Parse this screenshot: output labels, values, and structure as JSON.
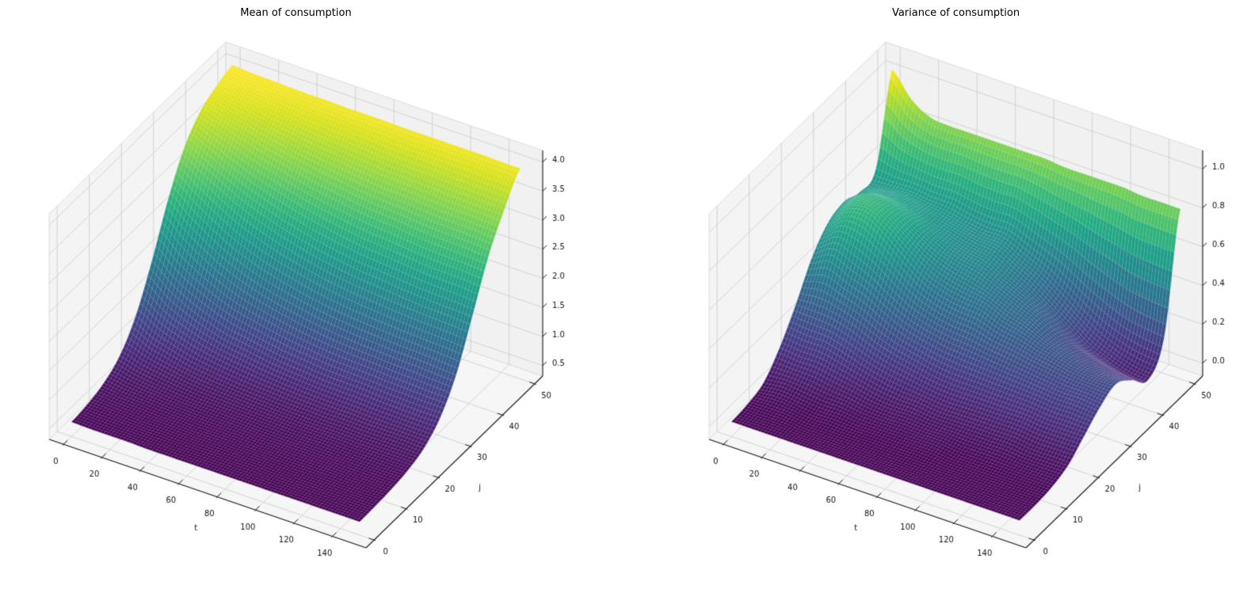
{
  "figure": {
    "background": "#ffffff",
    "text_color": "#000000"
  },
  "colors": {
    "colormap_name": "viridis",
    "viridis_stops": [
      "#440154",
      "#48186a",
      "#472d7b",
      "#424086",
      "#3b528b",
      "#33638d",
      "#2c728e",
      "#26828e",
      "#21918c",
      "#1fa088",
      "#28ae80",
      "#3fbc73",
      "#5ec962",
      "#84d44b",
      "#addc30",
      "#d8e219",
      "#fde725"
    ]
  },
  "chart_data": [
    {
      "type": "surface",
      "projection": "3d",
      "title": "Mean of consumption",
      "xlabel": "t",
      "ylabel": "j",
      "x_ticks": [
        0,
        20,
        40,
        60,
        80,
        100,
        120,
        140
      ],
      "y_ticks": [
        0,
        10,
        20,
        30,
        40,
        50
      ],
      "z_ticks": [
        0.5,
        1.0,
        1.5,
        2.0,
        2.5,
        3.0,
        3.5,
        4.0
      ],
      "xlim": [
        -7.5,
        157.5
      ],
      "ylim": [
        -2.5,
        52.5
      ],
      "zlim": [
        0.32,
        4.2
      ],
      "colormap": "viridis",
      "grid": true,
      "x": [
        0,
        10,
        20,
        30,
        40,
        50,
        60,
        70,
        80,
        90,
        100,
        110,
        120,
        130,
        140,
        150
      ],
      "y": [
        0,
        5,
        10,
        15,
        20,
        25,
        30,
        35,
        40,
        45,
        50
      ],
      "z": [
        [
          0.57,
          0.56,
          0.56,
          0.56,
          0.55,
          0.55,
          0.55,
          0.55,
          0.55,
          0.55,
          0.55,
          0.55,
          0.55,
          0.55,
          0.55,
          0.55
        ],
        [
          0.61,
          0.6,
          0.59,
          0.58,
          0.58,
          0.57,
          0.57,
          0.57,
          0.57,
          0.57,
          0.56,
          0.56,
          0.56,
          0.56,
          0.56,
          0.56
        ],
        [
          0.7,
          0.66,
          0.64,
          0.62,
          0.61,
          0.6,
          0.6,
          0.6,
          0.59,
          0.59,
          0.59,
          0.59,
          0.59,
          0.58,
          0.58,
          0.58
        ],
        [
          0.9,
          0.81,
          0.76,
          0.72,
          0.69,
          0.68,
          0.67,
          0.66,
          0.65,
          0.64,
          0.64,
          0.64,
          0.63,
          0.63,
          0.63,
          0.63
        ],
        [
          1.32,
          1.14,
          1.03,
          0.94,
          0.89,
          0.85,
          0.82,
          0.8,
          0.78,
          0.77,
          0.76,
          0.76,
          0.75,
          0.75,
          0.75,
          0.74
        ],
        [
          1.99,
          1.72,
          1.53,
          1.39,
          1.28,
          1.22,
          1.16,
          1.11,
          1.08,
          1.05,
          1.04,
          1.03,
          1.01,
          1.0,
          0.99,
          0.99
        ],
        [
          2.77,
          2.49,
          2.27,
          2.08,
          1.94,
          1.83,
          1.75,
          1.68,
          1.62,
          1.58,
          1.55,
          1.53,
          1.51,
          1.5,
          1.48,
          1.46
        ],
        [
          3.39,
          3.2,
          3.02,
          2.85,
          2.72,
          2.61,
          2.52,
          2.44,
          2.38,
          2.33,
          2.3,
          2.27,
          2.24,
          2.22,
          2.21,
          2.19
        ],
        [
          3.75,
          3.65,
          3.55,
          3.44,
          3.36,
          3.28,
          3.21,
          3.16,
          3.11,
          3.07,
          3.05,
          3.02,
          2.99,
          2.98,
          2.97,
          2.95
        ],
        [
          3.92,
          3.87,
          3.83,
          3.78,
          3.73,
          3.69,
          3.66,
          3.63,
          3.6,
          3.57,
          3.56,
          3.55,
          3.53,
          3.52,
          3.51,
          3.5
        ],
        [
          4.02,
          4.0,
          3.99,
          3.98,
          3.97,
          3.97,
          3.96,
          3.96,
          3.96,
          3.95,
          3.95,
          3.95,
          3.95,
          3.95,
          3.94,
          3.94
        ]
      ]
    },
    {
      "type": "surface",
      "projection": "3d",
      "title": "Variance of consumption",
      "xlabel": "t",
      "ylabel": "j",
      "x_ticks": [
        0,
        20,
        40,
        60,
        80,
        100,
        120,
        140
      ],
      "y_ticks": [
        0,
        10,
        20,
        30,
        40,
        50
      ],
      "z_ticks": [
        0.0,
        0.2,
        0.4,
        0.6,
        0.8,
        1.0
      ],
      "xlim": [
        -7.5,
        157.5
      ],
      "ylim": [
        -2.5,
        52.5
      ],
      "zlim": [
        -0.066,
        1.096
      ],
      "colormap": "viridis",
      "grid": true,
      "x": [
        0,
        10,
        20,
        30,
        40,
        50,
        60,
        70,
        80,
        90,
        100,
        110,
        120,
        130,
        140,
        150
      ],
      "y": [
        0,
        5,
        10,
        15,
        20,
        25,
        30,
        35,
        40,
        45,
        50
      ],
      "z": [
        [
          0.01,
          0.01,
          0.01,
          0.01,
          0.01,
          0.01,
          0.01,
          0.01,
          0.01,
          0.01,
          0.01,
          0.01,
          0.01,
          0.01,
          0.01,
          0.01
        ],
        [
          0.02,
          0.02,
          0.02,
          0.01,
          0.01,
          0.01,
          0.01,
          0.01,
          0.01,
          0.01,
          0.01,
          0.01,
          0.01,
          0.01,
          0.01,
          0.01
        ],
        [
          0.05,
          0.06,
          0.05,
          0.04,
          0.04,
          0.03,
          0.03,
          0.03,
          0.03,
          0.03,
          0.02,
          0.02,
          0.02,
          0.02,
          0.02,
          0.02
        ],
        [
          0.15,
          0.14,
          0.14,
          0.12,
          0.1,
          0.08,
          0.07,
          0.07,
          0.06,
          0.06,
          0.06,
          0.06,
          0.06,
          0.05,
          0.05,
          0.05
        ],
        [
          0.29,
          0.29,
          0.28,
          0.25,
          0.21,
          0.18,
          0.16,
          0.14,
          0.13,
          0.13,
          0.13,
          0.13,
          0.13,
          0.12,
          0.12,
          0.12
        ],
        [
          0.45,
          0.5,
          0.46,
          0.42,
          0.36,
          0.31,
          0.28,
          0.26,
          0.25,
          0.24,
          0.23,
          0.22,
          0.21,
          0.2,
          0.2,
          0.19
        ],
        [
          0.55,
          0.64,
          0.65,
          0.59,
          0.51,
          0.44,
          0.4,
          0.38,
          0.37,
          0.33,
          0.31,
          0.28,
          0.26,
          0.24,
          0.23,
          0.23
        ],
        [
          0.58,
          0.65,
          0.65,
          0.61,
          0.55,
          0.5,
          0.47,
          0.45,
          0.41,
          0.37,
          0.33,
          0.27,
          0.23,
          0.2,
          0.18,
          0.17
        ],
        [
          0.55,
          0.58,
          0.58,
          0.56,
          0.53,
          0.51,
          0.49,
          0.48,
          0.43,
          0.38,
          0.31,
          0.24,
          0.17,
          0.13,
          0.1,
          0.09
        ],
        [
          0.59,
          0.58,
          0.58,
          0.57,
          0.57,
          0.55,
          0.54,
          0.54,
          0.5,
          0.46,
          0.41,
          0.35,
          0.3,
          0.26,
          0.24,
          0.23
        ],
        [
          1.02,
          0.9,
          0.84,
          0.83,
          0.83,
          0.83,
          0.83,
          0.83,
          0.83,
          0.82,
          0.82,
          0.82,
          0.82,
          0.81,
          0.81,
          0.81
        ]
      ]
    }
  ]
}
